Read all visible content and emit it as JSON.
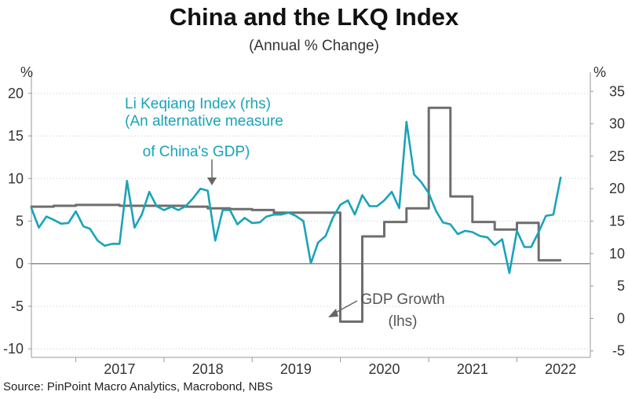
{
  "title": "China and the LKQ Index",
  "subtitle": "(Annual % Change)",
  "source": "Source: PinPoint Macro Analytics, Macrobond, NBS",
  "chart_data": {
    "type": "line",
    "title": "China and the LKQ Index",
    "subtitle": "(Annual % Change)",
    "left_axis": {
      "unit": "%",
      "ylim": [
        -11,
        21
      ],
      "ticks": [
        -10,
        -5,
        0,
        5,
        10,
        15,
        20
      ]
    },
    "right_axis": {
      "unit": "%",
      "ylim": [
        -6,
        36
      ],
      "ticks": [
        -5,
        0,
        5,
        10,
        15,
        20,
        25,
        30,
        35
      ]
    },
    "x_axis": {
      "xlim": [
        "2016-07-01",
        "2022-11-01"
      ],
      "tick_labels": [
        "2017",
        "2018",
        "2019",
        "2020",
        "2021",
        "2022"
      ]
    },
    "grid": "horizontal dotted",
    "colors": {
      "gdp": "#6e6e6e",
      "lkq": "#1aa3b8",
      "zero_line": "#777777"
    },
    "annotations": [
      {
        "text_lines": [
          "Li Keqiang Index (rhs)",
          "(An alternative measure",
          "of China's GDP)"
        ],
        "points_to_series": "Li Keqiang Index (rhs)"
      },
      {
        "text_lines": [
          "GDP Growth",
          "(lhs)"
        ],
        "points_to_series": "GDP Growth (lhs)"
      }
    ],
    "series": [
      {
        "name": "GDP Growth (lhs)",
        "axis": "left",
        "color": "#6e6e6e",
        "step": true,
        "points": [
          [
            "2016-07-01",
            6.7
          ],
          [
            "2016-10-01",
            6.8
          ],
          [
            "2017-01-01",
            6.9
          ],
          [
            "2017-04-01",
            6.9
          ],
          [
            "2017-07-01",
            6.8
          ],
          [
            "2017-10-01",
            6.8
          ],
          [
            "2018-01-01",
            6.8
          ],
          [
            "2018-04-01",
            6.7
          ],
          [
            "2018-07-01",
            6.5
          ],
          [
            "2018-10-01",
            6.4
          ],
          [
            "2019-01-01",
            6.3
          ],
          [
            "2019-04-01",
            6.0
          ],
          [
            "2019-07-01",
            6.0
          ],
          [
            "2019-10-01",
            6.0
          ],
          [
            "2020-01-01",
            -6.8
          ],
          [
            "2020-04-01",
            3.2
          ],
          [
            "2020-07-01",
            4.9
          ],
          [
            "2020-10-01",
            6.5
          ],
          [
            "2021-01-01",
            18.3
          ],
          [
            "2021-04-01",
            7.9
          ],
          [
            "2021-07-01",
            4.9
          ],
          [
            "2021-10-01",
            4.0
          ],
          [
            "2022-01-01",
            4.8
          ],
          [
            "2022-04-01",
            0.4
          ],
          [
            "2022-06-30",
            0.4
          ]
        ]
      },
      {
        "name": "Li Keqiang Index (rhs)",
        "axis": "right",
        "color": "#1aa3b8",
        "step": false,
        "points": [
          [
            "2016-07-01",
            17.0
          ],
          [
            "2016-08-01",
            14.0
          ],
          [
            "2016-09-01",
            15.7
          ],
          [
            "2016-10-01",
            15.2
          ],
          [
            "2016-11-01",
            14.6
          ],
          [
            "2016-12-01",
            14.7
          ],
          [
            "2017-01-01",
            16.5
          ],
          [
            "2017-02-01",
            14.2
          ],
          [
            "2017-03-01",
            13.8
          ],
          [
            "2017-04-01",
            12.0
          ],
          [
            "2017-05-01",
            11.2
          ],
          [
            "2017-06-01",
            11.5
          ],
          [
            "2017-07-01",
            11.5
          ],
          [
            "2017-08-01",
            21.2
          ],
          [
            "2017-09-01",
            14.0
          ],
          [
            "2017-10-01",
            16.0
          ],
          [
            "2017-11-01",
            19.5
          ],
          [
            "2017-12-01",
            17.3
          ],
          [
            "2018-01-01",
            16.7
          ],
          [
            "2018-02-01",
            17.2
          ],
          [
            "2018-03-01",
            16.7
          ],
          [
            "2018-04-01",
            17.3
          ],
          [
            "2018-05-01",
            18.5
          ],
          [
            "2018-06-01",
            20.0
          ],
          [
            "2018-07-01",
            19.7
          ],
          [
            "2018-08-01",
            12.0
          ],
          [
            "2018-09-01",
            16.7
          ],
          [
            "2018-10-01",
            16.7
          ],
          [
            "2018-11-01",
            14.5
          ],
          [
            "2018-12-01",
            15.5
          ],
          [
            "2019-01-01",
            14.7
          ],
          [
            "2019-02-01",
            14.8
          ],
          [
            "2019-03-01",
            15.7
          ],
          [
            "2019-04-01",
            16.0
          ],
          [
            "2019-05-01",
            16.0
          ],
          [
            "2019-06-01",
            16.3
          ],
          [
            "2019-07-01",
            15.8
          ],
          [
            "2019-08-01",
            15.0
          ],
          [
            "2019-09-01",
            8.5
          ],
          [
            "2019-10-01",
            11.7
          ],
          [
            "2019-11-01",
            12.7
          ],
          [
            "2019-12-01",
            15.5
          ],
          [
            "2020-01-01",
            17.5
          ],
          [
            "2020-02-01",
            18.2
          ],
          [
            "2020-03-01",
            16.0
          ],
          [
            "2020-04-01",
            19.0
          ],
          [
            "2020-05-01",
            17.3
          ],
          [
            "2020-06-01",
            17.3
          ],
          [
            "2020-07-01",
            18.2
          ],
          [
            "2020-08-01",
            19.5
          ],
          [
            "2020-09-01",
            17.0
          ],
          [
            "2020-10-01",
            30.3
          ],
          [
            "2020-11-01",
            22.2
          ],
          [
            "2020-12-01",
            21.0
          ],
          [
            "2021-01-01",
            19.3
          ],
          [
            "2021-02-01",
            16.5
          ],
          [
            "2021-03-01",
            14.8
          ],
          [
            "2021-04-01",
            14.5
          ],
          [
            "2021-05-01",
            13.0
          ],
          [
            "2021-06-01",
            13.5
          ],
          [
            "2021-07-01",
            13.3
          ],
          [
            "2021-08-01",
            12.7
          ],
          [
            "2021-09-01",
            12.5
          ],
          [
            "2021-10-01",
            11.3
          ],
          [
            "2021-11-01",
            12.2
          ],
          [
            "2021-12-01",
            7.0
          ],
          [
            "2022-01-01",
            13.5
          ],
          [
            "2022-02-01",
            11.0
          ],
          [
            "2022-03-01",
            11.0
          ],
          [
            "2022-04-01",
            13.3
          ],
          [
            "2022-05-01",
            15.8
          ],
          [
            "2022-06-01",
            16.0
          ],
          [
            "2022-07-01",
            21.7
          ]
        ]
      }
    ]
  }
}
